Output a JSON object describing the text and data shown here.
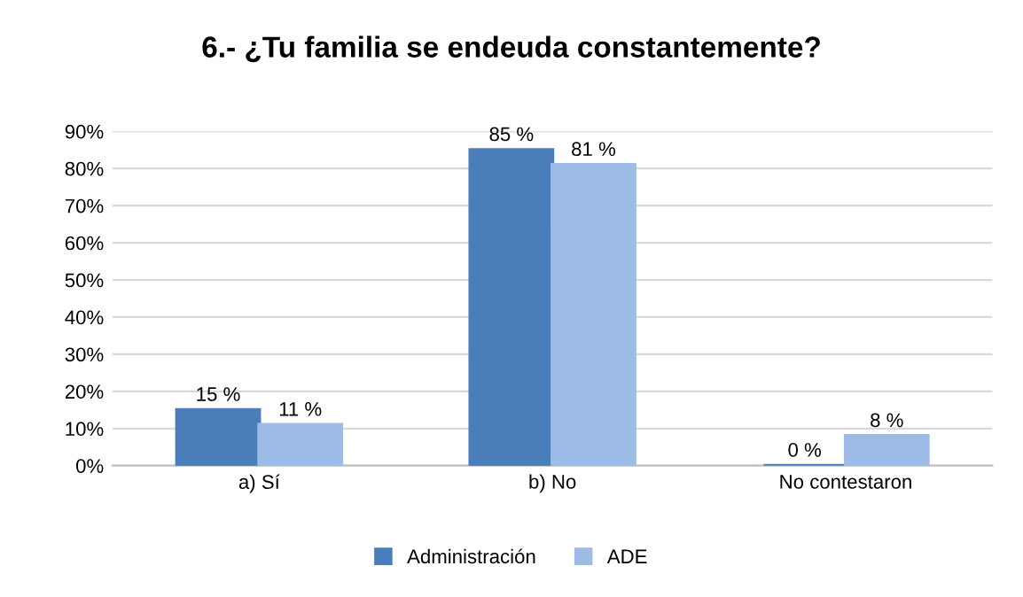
{
  "chart_data": {
    "type": "bar",
    "title": "6.- ¿Tu familia se endeuda constantemente?",
    "categories": [
      "a) Sí",
      "b) No",
      "No contestaron"
    ],
    "series": [
      {
        "name": "Administración",
        "color": "#4a7ebb",
        "values": [
          15,
          85,
          0
        ],
        "value_labels": [
          "15 %",
          "85 %",
          "0 %"
        ]
      },
      {
        "name": "ADE",
        "color": "#9dbde6",
        "values": [
          11,
          81,
          8
        ],
        "value_labels": [
          "11 %",
          "81 %",
          "8 %"
        ]
      }
    ],
    "ylim": [
      0,
      90
    ],
    "yticks": [
      {
        "value": 0,
        "label": "0%"
      },
      {
        "value": 10,
        "label": "10%"
      },
      {
        "value": 20,
        "label": "20%"
      },
      {
        "value": 30,
        "label": "30%"
      },
      {
        "value": 40,
        "label": "40%"
      },
      {
        "value": 50,
        "label": "50%"
      },
      {
        "value": 60,
        "label": "60%"
      },
      {
        "value": 70,
        "label": "70%"
      },
      {
        "value": 80,
        "label": "80%"
      },
      {
        "value": 90,
        "label": "90%"
      }
    ],
    "grid": "y",
    "legend": "bottom"
  }
}
